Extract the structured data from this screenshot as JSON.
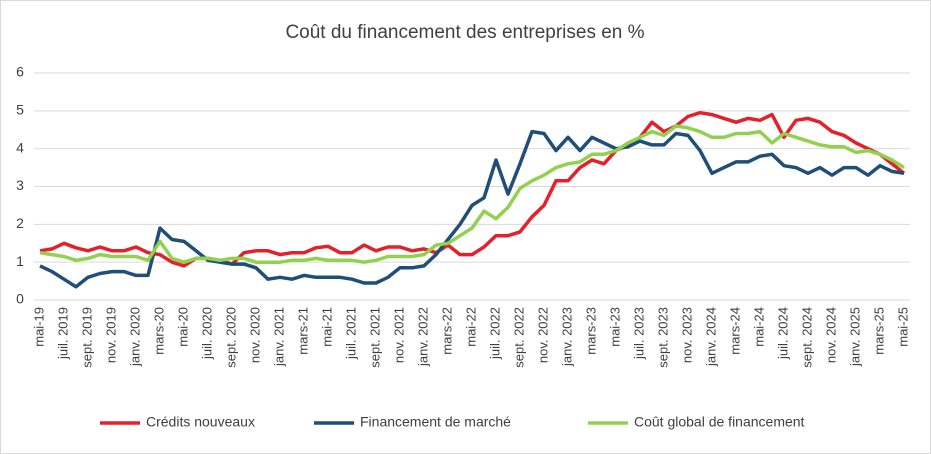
{
  "chart_data": {
    "type": "line",
    "title": "Coût du financement des entreprises en %",
    "categories": [
      "mai-19",
      null,
      "juil. 2019",
      null,
      "sept. 2019",
      null,
      "nov. 2019",
      null,
      "janv. 2020",
      null,
      "mars-20",
      null,
      "mai-20",
      null,
      "juil. 2020",
      null,
      "sept. 2020",
      null,
      "nov. 2020",
      null,
      "janv. 2021",
      null,
      "mars-21",
      null,
      "mai-21",
      null,
      "juil. 2021",
      null,
      "sept. 2021",
      null,
      "nov. 2021",
      null,
      "janv. 2022",
      null,
      "mars-22",
      null,
      "mai-22",
      null,
      "juil. 2022",
      null,
      "sept. 2022",
      null,
      "nov. 2022",
      null,
      "janv. 2023",
      null,
      "mars-23",
      null,
      "mai-23",
      null,
      "juil. 2023",
      null,
      "sept. 2023",
      null,
      "nov. 2023",
      null,
      "janv. 2024",
      null,
      "mars-24",
      null,
      "mai-24",
      null,
      "juil. 2024",
      null,
      "sept. 2024",
      null,
      "nov. 2024",
      null,
      "janv. 2025",
      null,
      "mars-25",
      null,
      "mai-25"
    ],
    "series": [
      {
        "name": "Crédits nouveaux",
        "color": "#e3212b",
        "values": [
          1.3,
          1.35,
          1.5,
          1.38,
          1.3,
          1.4,
          1.3,
          1.3,
          1.4,
          1.25,
          1.2,
          1.0,
          0.9,
          1.1,
          1.1,
          1.05,
          0.95,
          1.25,
          1.3,
          1.3,
          1.2,
          1.25,
          1.25,
          1.38,
          1.42,
          1.25,
          1.25,
          1.45,
          1.3,
          1.4,
          1.4,
          1.3,
          1.35,
          1.25,
          1.45,
          1.2,
          1.2,
          1.4,
          1.7,
          1.7,
          1.8,
          2.2,
          2.5,
          3.15,
          3.15,
          3.5,
          3.7,
          3.6,
          3.95,
          4.1,
          4.3,
          4.7,
          4.45,
          4.6,
          4.85,
          4.95,
          4.9,
          4.8,
          4.7,
          4.8,
          4.75,
          4.9,
          4.3,
          4.75,
          4.8,
          4.7,
          4.45,
          4.35,
          4.15,
          4.0,
          3.85,
          3.6,
          3.35
        ]
      },
      {
        "name": "Financement de marché",
        "color": "#1f4e79",
        "values": [
          0.9,
          0.75,
          0.55,
          0.35,
          0.6,
          0.7,
          0.75,
          0.75,
          0.65,
          0.65,
          1.9,
          1.6,
          1.55,
          1.3,
          1.05,
          1.0,
          0.95,
          0.95,
          0.85,
          0.55,
          0.6,
          0.55,
          0.65,
          0.6,
          0.6,
          0.6,
          0.55,
          0.45,
          0.45,
          0.6,
          0.85,
          0.85,
          0.9,
          1.2,
          1.6,
          2.0,
          2.5,
          2.7,
          3.7,
          2.8,
          3.6,
          4.45,
          4.4,
          3.95,
          4.3,
          3.95,
          4.3,
          4.15,
          4.0,
          4.05,
          4.2,
          4.1,
          4.1,
          4.4,
          4.35,
          3.95,
          3.35,
          3.5,
          3.65,
          3.65,
          3.8,
          3.85,
          3.55,
          3.5,
          3.35,
          3.5,
          3.3,
          3.5,
          3.5,
          3.3,
          3.55,
          3.4,
          3.35
        ]
      },
      {
        "name": "Coût global de financement",
        "color": "#92d050",
        "values": [
          1.25,
          1.2,
          1.15,
          1.05,
          1.1,
          1.2,
          1.15,
          1.15,
          1.15,
          1.05,
          1.55,
          1.1,
          1.0,
          1.1,
          1.1,
          1.05,
          1.1,
          1.1,
          1.0,
          1.0,
          1.0,
          1.05,
          1.05,
          1.1,
          1.05,
          1.05,
          1.05,
          1.0,
          1.05,
          1.15,
          1.15,
          1.15,
          1.2,
          1.45,
          1.5,
          1.7,
          1.9,
          2.35,
          2.15,
          2.45,
          2.95,
          3.15,
          3.3,
          3.5,
          3.6,
          3.65,
          3.85,
          3.85,
          3.95,
          4.15,
          4.3,
          4.45,
          4.35,
          4.6,
          4.55,
          4.45,
          4.3,
          4.3,
          4.4,
          4.4,
          4.45,
          4.15,
          4.4,
          4.3,
          4.2,
          4.1,
          4.05,
          4.05,
          3.9,
          3.95,
          3.85,
          3.7,
          3.5
        ]
      }
    ],
    "ylim": [
      0,
      6
    ],
    "yticks": [
      0,
      1,
      2,
      3,
      4,
      5,
      6
    ],
    "grid": true
  }
}
